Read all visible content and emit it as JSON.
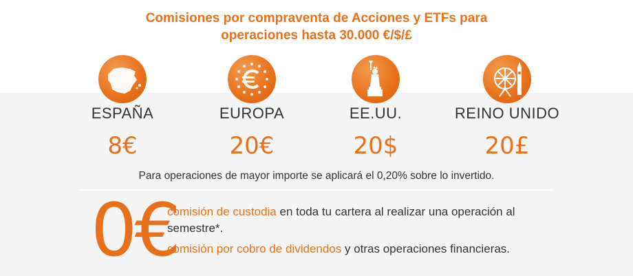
{
  "title": {
    "line1": "Comisiones por compraventa de Acciones y ETFs para",
    "line2": "operaciones hasta 30.000 €/$/£"
  },
  "markets": [
    {
      "country": "ESPAÑA",
      "price": "8€",
      "icon": "spain-map-icon"
    },
    {
      "country": "EUROPA",
      "price": "20€",
      "icon": "euro-stars-icon"
    },
    {
      "country": "EE.UU.",
      "price": "20$",
      "icon": "statue-of-liberty-icon"
    },
    {
      "country": "REINO UNIDO",
      "price": "20£",
      "icon": "london-eye-icon"
    }
  ],
  "note": "Para operaciones de mayor importe se aplicará el 0,20% sobre lo invertido.",
  "zero_fee": {
    "amount": "0€",
    "feature1_highlight": "comisión de custodia",
    "feature1_rest": " en toda tu cartera al realizar una operación al semestre*.",
    "feature2_highlight": "comisión por cobro de dividendos",
    "feature2_rest": " y otras operaciones financieras."
  },
  "colors": {
    "accent": "#e8701a",
    "text": "#333333",
    "panel": "#f5f5f5"
  }
}
